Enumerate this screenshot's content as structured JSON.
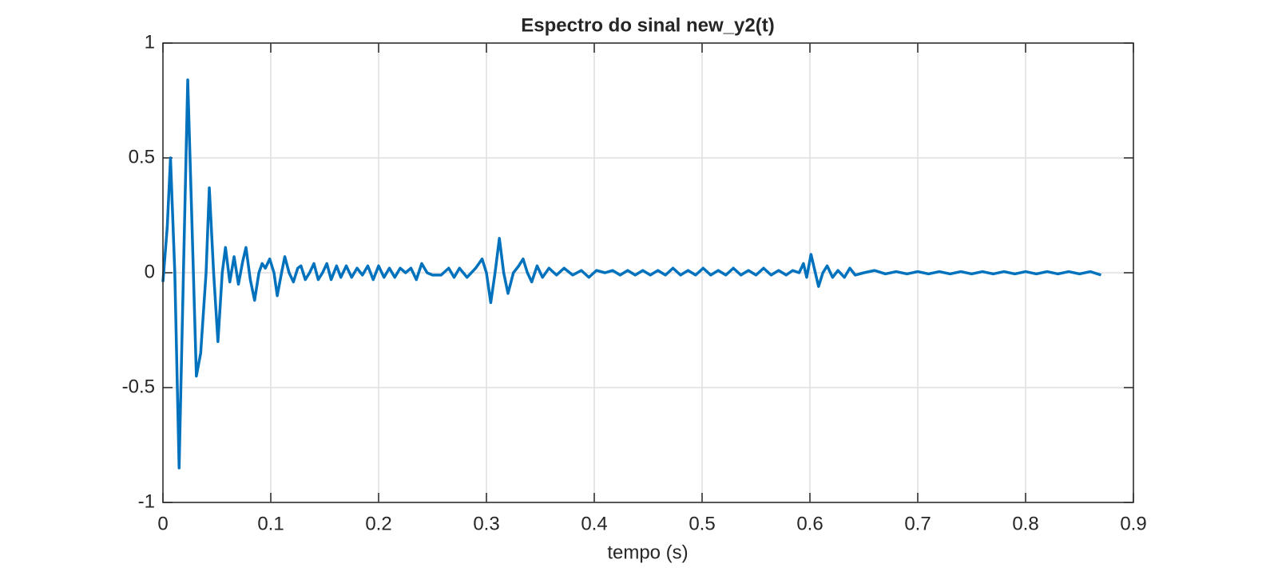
{
  "chart_data": {
    "type": "line",
    "title": "Espectro do sinal new_y2(t)",
    "x_label": "tempo (s)",
    "x": [
      0,
      0.004,
      0.007,
      0.011,
      0.015,
      0.019,
      0.023,
      0.027,
      0.031,
      0.035,
      0.04,
      0.043,
      0.047,
      0.051,
      0.055,
      0.058,
      0.062,
      0.066,
      0.07,
      0.074,
      0.077,
      0.081,
      0.085,
      0.089,
      0.092,
      0.095,
      0.099,
      0.103,
      0.106,
      0.11,
      0.113,
      0.117,
      0.121,
      0.125,
      0.128,
      0.132,
      0.136,
      0.14,
      0.144,
      0.148,
      0.152,
      0.156,
      0.161,
      0.165,
      0.17,
      0.175,
      0.18,
      0.185,
      0.19,
      0.195,
      0.2,
      0.205,
      0.21,
      0.215,
      0.22,
      0.225,
      0.23,
      0.235,
      0.24,
      0.245,
      0.25,
      0.258,
      0.265,
      0.27,
      0.275,
      0.282,
      0.29,
      0.296,
      0.3,
      0.304,
      0.308,
      0.312,
      0.316,
      0.32,
      0.325,
      0.33,
      0.334,
      0.338,
      0.342,
      0.347,
      0.352,
      0.358,
      0.365,
      0.372,
      0.38,
      0.388,
      0.395,
      0.402,
      0.41,
      0.417,
      0.424,
      0.431,
      0.438,
      0.445,
      0.452,
      0.459,
      0.466,
      0.473,
      0.48,
      0.487,
      0.494,
      0.501,
      0.508,
      0.515,
      0.522,
      0.529,
      0.536,
      0.543,
      0.55,
      0.557,
      0.564,
      0.571,
      0.578,
      0.584,
      0.59,
      0.594,
      0.597,
      0.601,
      0.605,
      0.608,
      0.612,
      0.616,
      0.621,
      0.626,
      0.632,
      0.637,
      0.642,
      0.65,
      0.66,
      0.67,
      0.68,
      0.69,
      0.7,
      0.71,
      0.72,
      0.73,
      0.74,
      0.75,
      0.76,
      0.77,
      0.78,
      0.79,
      0.8,
      0.81,
      0.82,
      0.83,
      0.84,
      0.85,
      0.86,
      0.87
    ],
    "series": [
      {
        "color": "#0072bd",
        "values": [
          -0.04,
          0.2,
          0.5,
          0.0,
          -0.85,
          0.0,
          0.84,
          0.2,
          -0.45,
          -0.35,
          0.0,
          0.37,
          0.0,
          -0.3,
          0.0,
          0.11,
          -0.04,
          0.07,
          -0.05,
          0.05,
          0.11,
          -0.03,
          -0.12,
          0.0,
          0.04,
          0.02,
          0.06,
          0.0,
          -0.1,
          0.0,
          0.07,
          0.0,
          -0.04,
          0.02,
          0.03,
          -0.03,
          0.0,
          0.04,
          -0.03,
          0.0,
          0.04,
          -0.03,
          0.03,
          -0.02,
          0.03,
          -0.02,
          0.02,
          -0.01,
          0.03,
          -0.03,
          0.03,
          -0.02,
          0.02,
          -0.02,
          0.02,
          0.0,
          0.02,
          -0.03,
          0.04,
          0.0,
          -0.01,
          -0.01,
          0.02,
          -0.02,
          0.02,
          -0.02,
          0.02,
          0.06,
          0.0,
          -0.13,
          0.0,
          0.15,
          0.0,
          -0.09,
          0.0,
          0.03,
          0.06,
          0.0,
          -0.04,
          0.03,
          -0.02,
          0.02,
          -0.01,
          0.02,
          -0.01,
          0.01,
          -0.02,
          0.01,
          0.0,
          0.01,
          -0.01,
          0.01,
          -0.01,
          0.01,
          -0.01,
          0.01,
          -0.01,
          0.02,
          -0.01,
          0.01,
          -0.01,
          0.02,
          -0.01,
          0.01,
          -0.01,
          0.02,
          -0.01,
          0.01,
          -0.01,
          0.02,
          -0.01,
          0.01,
          -0.01,
          0.01,
          0.0,
          0.04,
          -0.02,
          0.08,
          0.0,
          -0.06,
          0.0,
          0.03,
          -0.02,
          0.01,
          -0.02,
          0.02,
          -0.01,
          0.0,
          0.01,
          -0.005,
          0.005,
          -0.005,
          0.005,
          -0.005,
          0.005,
          -0.005,
          0.005,
          -0.005,
          0.005,
          -0.005,
          0.005,
          -0.005,
          0.005,
          -0.005,
          0.005,
          -0.005,
          0.005,
          -0.005,
          0.005,
          -0.01
        ]
      }
    ],
    "xlim": [
      0,
      0.9
    ],
    "xticks": [
      0,
      0.1,
      0.2,
      0.3,
      0.4,
      0.5,
      0.6,
      0.7,
      0.8,
      0.9
    ],
    "ylim": [
      -1,
      1
    ],
    "yticks": [
      -1,
      -0.5,
      0,
      0.5,
      1
    ],
    "grid": true
  }
}
